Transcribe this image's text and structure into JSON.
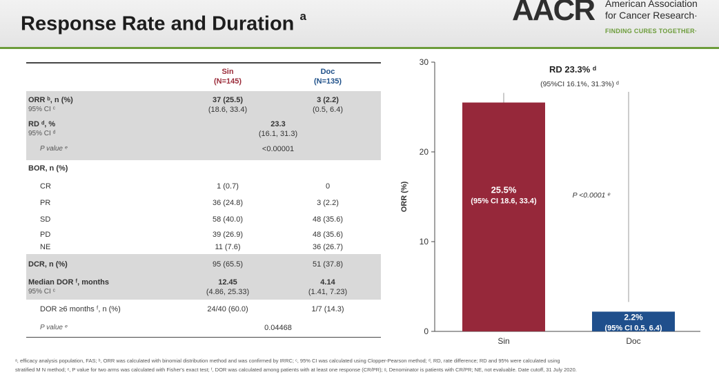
{
  "header": {
    "title": "Response Rate and Duration",
    "title_sup": "a",
    "logo_mark": "AACR",
    "logo_line1": "American Association",
    "logo_line2": "for Cancer Research·",
    "logo_tagline": "FINDING CURES TOGETHER·"
  },
  "table": {
    "col_sin_name": "Sin",
    "col_sin_n": "(N=145)",
    "col_doc_name": "Doc",
    "col_doc_n": "(N=135)",
    "orr_label": "ORR ᵇ, n (%)",
    "orr_ci_label": "95% CI ᶜ",
    "orr_sin": "37 (25.5)",
    "orr_sin_ci": "(18.6, 33.4)",
    "orr_doc": "3 (2.2)",
    "orr_doc_ci": "(0.5, 6.4)",
    "rd_label": "RD ᵈ, %",
    "rd_ci_label": "95% CI ᵈ",
    "rd_value": "23.3",
    "rd_ci": "(16.1, 31.3)",
    "rd_p_label": "P value ᵉ",
    "rd_p_value": "<0.00001",
    "bor_label": "BOR, n (%)",
    "bor_rows": [
      {
        "label": "CR",
        "sin": "1 (0.7)",
        "doc": "0"
      },
      {
        "label": "PR",
        "sin": "36 (24.8)",
        "doc": "3 (2.2)"
      },
      {
        "label": "SD",
        "sin": "58 (40.0)",
        "doc": "48 (35.6)"
      },
      {
        "label": "PD",
        "sin": "39 (26.9)",
        "doc": "48 (35.6)"
      },
      {
        "label": "NE",
        "sin": "11 (7.6)",
        "doc": "36 (26.7)"
      }
    ],
    "dcr_label": "DCR, n (%)",
    "dcr_sin": "95 (65.5)",
    "dcr_doc": "51 (37.8)",
    "dor_label": "Median DOR ᶠ, months",
    "dor_ci_label": "95% CI ᶜ",
    "dor_sin": "12.45",
    "dor_sin_ci": "(4.86, 25.33)",
    "dor_doc": "4.14",
    "dor_doc_ci": "(1.41, 7.23)",
    "dor6_label": "DOR ≥6 months ᶠ, n (%)",
    "dor6_sin": "24/40 (60.0)",
    "dor6_doc": "1/7 (14.3)",
    "dor_p_label": "P value ᵉ",
    "dor_p_value": "0.04468"
  },
  "chart_data": {
    "type": "bar",
    "categories": [
      "Sin",
      "Doc"
    ],
    "values": [
      25.5,
      2.2
    ],
    "colors": [
      "#96283a",
      "#1f4f8c"
    ],
    "bar_labels": [
      "25.5%",
      "2.2%"
    ],
    "bar_ci_labels": [
      "(95% CI 18.6, 33.4)",
      "(95% CI 0.5, 6.4)"
    ],
    "ylabel": "ORR (%)",
    "ylim": [
      0,
      30
    ],
    "yticks": [
      0,
      10,
      20,
      30
    ],
    "annotation_rd": "RD 23.3% ᵈ",
    "annotation_rd_ci": "(95%CI 16.1%, 31.3%) ᵈ",
    "annotation_p": "P <0.0001 ᵉ"
  },
  "footnote": {
    "line1": "ᵃ, efficacy analysis population, FAS; ᵇ, ORR was calculated with binomial distribution method and was confirmed by IRRC; ᶜ, 95% CI was calculated using Clopper-Pearson method; ᵈ, RD, rate difference; RD and 95% were calculated using",
    "line2": "stratified M N method; ᵉ, P value for two arms was calculated with Fisher's exact test; ᶠ, DOR was calculated among patients with at least one response (CR/PR); ᵍ, Denominator is patients with CR/PR; NE, not evaluable. Date cutoff, 31 July 2020."
  }
}
